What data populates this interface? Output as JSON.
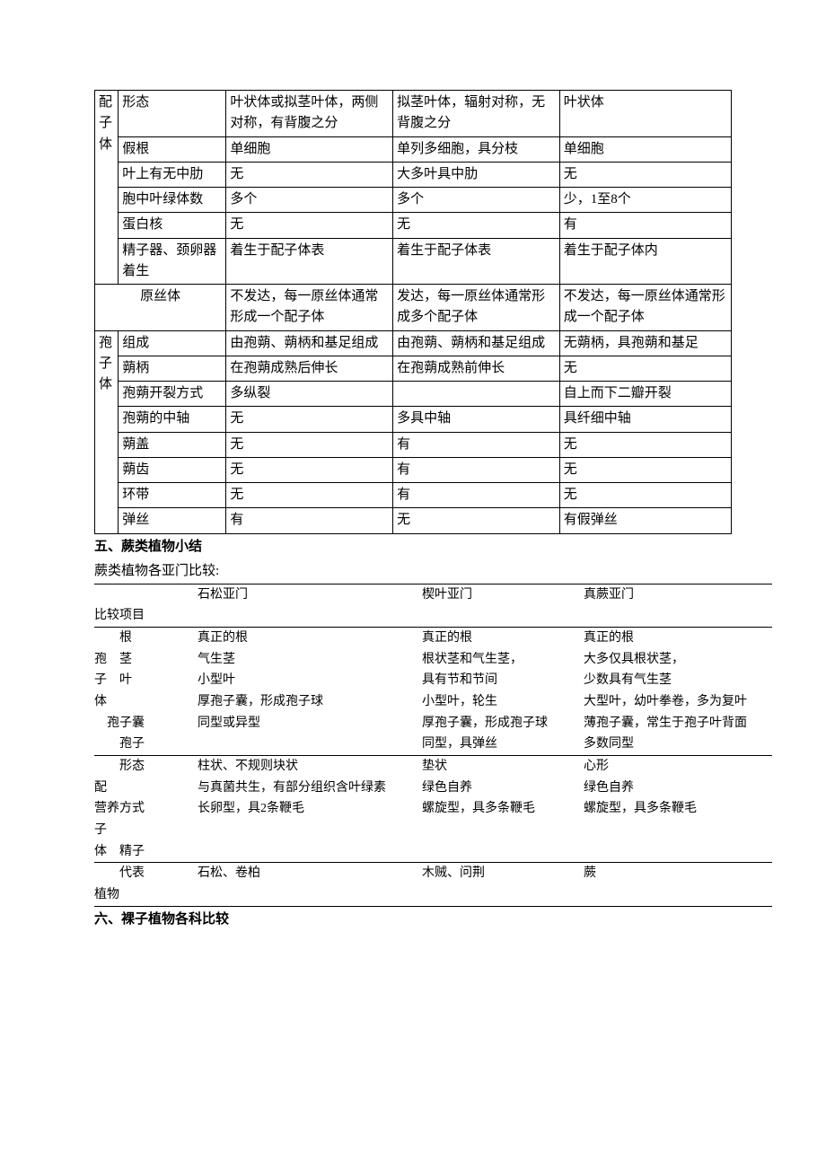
{
  "table1": {
    "colors": {
      "border": "#000000",
      "bg": "#ffffff",
      "text": "#000000"
    },
    "sections": {
      "pzt_label": "配子体",
      "bzt_label": "孢子体"
    },
    "rows": [
      {
        "a": "形态",
        "b": "叶状体或拟茎叶体，两侧对称，有背腹之分",
        "c": "拟茎叶体，辐射对称，无背腹之分",
        "d": "叶状体"
      },
      {
        "a": "假根",
        "b": "单细胞",
        "c": "单列多细胞，具分枝",
        "d": "单细胞"
      },
      {
        "a": "叶上有无中肋",
        "b": "无",
        "c": "大多叶具中肋",
        "d": "无"
      },
      {
        "a": "胞中叶绿体数",
        "b": "多个",
        "c": "多个",
        "d": "少，1至8个"
      },
      {
        "a": "蛋白核",
        "b": "无",
        "c": "无",
        "d": "有"
      },
      {
        "a": "精子器、颈卵器着生",
        "b": "着生于配子体表",
        "c": "着生于配子体表",
        "d": "着生于配子体内"
      },
      {
        "a_span": "原丝体",
        "b": "不发达，每一原丝体通常形成一个配子体",
        "c": "发达，每一原丝体通常形成多个配子体",
        "d": "不发达，每一原丝体通常形成一个配子体"
      },
      {
        "a": "组成",
        "b": "由孢蒴、蒴柄和基足组成",
        "c": "由孢蒴、蒴柄和基足组成",
        "d": "无蒴柄，具孢蒴和基足"
      },
      {
        "a": "蒴柄",
        "b": "在孢蒴成熟后伸长",
        "c": "在孢蒴成熟前伸长",
        "d": "无"
      },
      {
        "a": "孢蒴开裂方式",
        "b": "多纵裂",
        "c": "",
        "d": "自上而下二瓣开裂"
      },
      {
        "a": "孢蒴的中轴",
        "b": "无",
        "c": "多具中轴",
        "d": "具纤细中轴"
      },
      {
        "a": "蒴盖",
        "b": "无",
        "c": "有",
        "d": "无"
      },
      {
        "a": "蒴齿",
        "b": "无",
        "c": "有",
        "d": "无"
      },
      {
        "a": "环带",
        "b": "无",
        "c": "有",
        "d": "无"
      },
      {
        "a": "弹丝",
        "b": "有",
        "c": "无",
        "d": "有假弹丝"
      }
    ]
  },
  "headings": {
    "h5": "五、蕨类植物小结",
    "h5sub": "蕨类植物各亚门比较:",
    "h6": "六、裸子植物各科比较"
  },
  "table2": {
    "header": {
      "col1": "",
      "col2": "石松亚门",
      "col3": "楔叶亚门",
      "col4": "真蕨亚门"
    },
    "col1_label": "比较项目",
    "bzt_lines": [
      "　　根",
      "孢　茎",
      "子　叶",
      "体",
      "　孢子囊",
      "　　孢子"
    ],
    "bzt_rows": [
      {
        "b": "真正的根",
        "c": "真正的根",
        "d": "真正的根"
      },
      {
        "b": "气生茎",
        "c": "根状茎和气生茎，",
        "d": "大多仅具根状茎，"
      },
      {
        "b": "小型叶",
        "c": "具有节和节间",
        "d": "少数具有气生茎"
      },
      {
        "b": "厚孢子囊，形成孢子球",
        "c": "小型叶，轮生",
        "d": "大型叶，幼叶拳卷，多为复叶"
      },
      {
        "b": "同型或异型",
        "c": "厚孢子囊，形成孢子球",
        "d": "薄孢子囊，常生于孢子叶背面"
      },
      {
        "b": "",
        "c": "同型，具弹丝",
        "d": "多数同型"
      }
    ],
    "pzt_lines": [
      "　　形态",
      "配",
      "营养方式",
      "子",
      "体　精子"
    ],
    "pzt_rows": [
      {
        "b": "柱状、不规则块状",
        "c": "垫状",
        "d": "心形"
      },
      {
        "b": "与真菌共生，有部分组织含叶绿素",
        "c": "绿色自养",
        "d": "绿色自养"
      },
      {
        "b": "长卵型，具2条鞭毛",
        "c": "螺旋型，具多条鞭毛",
        "d": "螺旋型，具多条鞭毛"
      },
      {
        "b": "",
        "c": "",
        "d": ""
      },
      {
        "b": "",
        "c": "",
        "d": ""
      }
    ],
    "rep_lines": [
      "　　代表",
      "植物"
    ],
    "rep_rows": [
      {
        "b": "石松、卷柏",
        "c": "木贼、问荆",
        "d": "蕨"
      },
      {
        "b": "",
        "c": "",
        "d": ""
      }
    ]
  }
}
